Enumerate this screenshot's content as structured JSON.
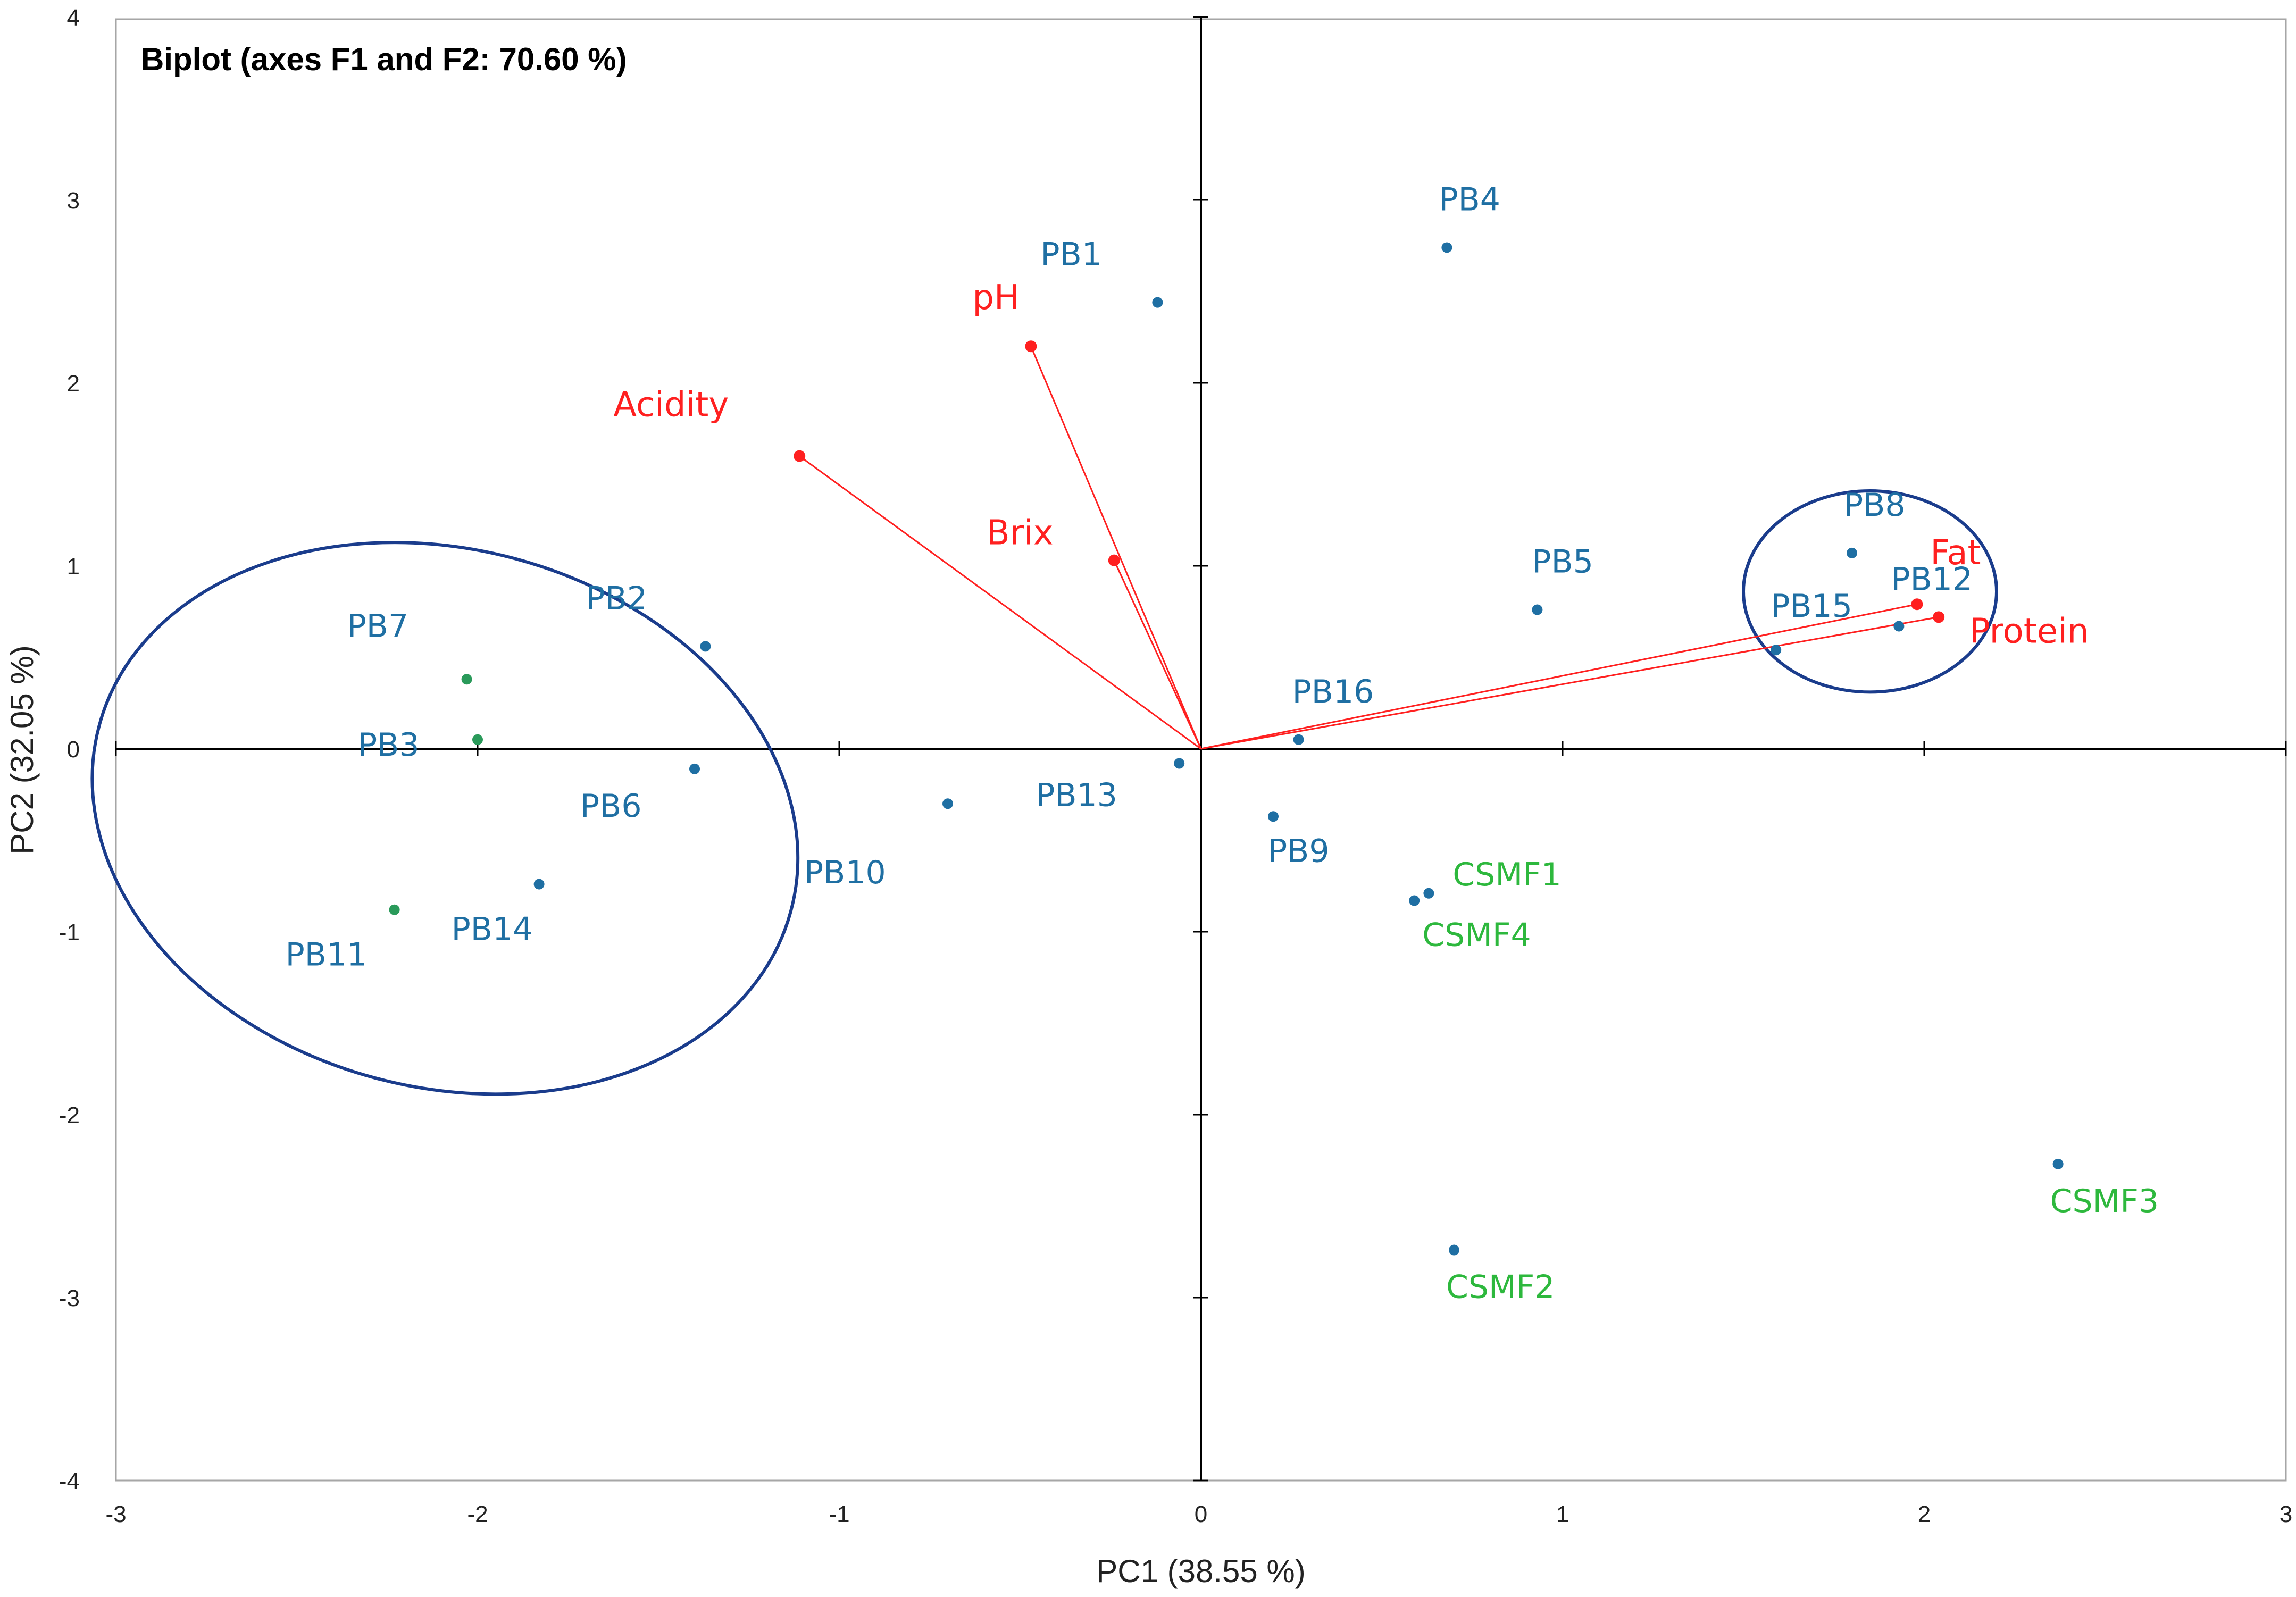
{
  "chart_data": {
    "type": "scatter",
    "title": "Biplot (axes F1 and F2: 70.60 %)",
    "xlabel": "PC1 (38.55 %)",
    "ylabel": "PC2 (32.05 %)",
    "xlim": [
      -3,
      3
    ],
    "ylim": [
      -4,
      4
    ],
    "xticks": [
      "-3",
      "-2",
      "-1",
      "0",
      "1",
      "2",
      "3"
    ],
    "yticks": [
      "4",
      "3",
      "2",
      "1",
      "0",
      "-1",
      "-2",
      "-3",
      "-4"
    ],
    "colors": {
      "sample": "#1f6fa3",
      "cluster_point": "#2a9a5a",
      "commercial": "#2db83d",
      "variable": "#ff2020",
      "ellipse": "#1a3c8c",
      "axis": "#000000"
    },
    "variables": [
      {
        "name": "pH",
        "x": -0.47,
        "y": 2.2
      },
      {
        "name": "Acidity",
        "x": -1.11,
        "y": 1.6
      },
      {
        "name": "Brix",
        "x": -0.24,
        "y": 1.03
      },
      {
        "name": "Fat",
        "x": 1.98,
        "y": 0.79
      },
      {
        "name": "Protein",
        "x": 2.04,
        "y": 0.72
      }
    ],
    "samples": [
      {
        "name": "PB1",
        "x": -0.12,
        "y": 2.44,
        "group": "sample"
      },
      {
        "name": "PB2",
        "x": -1.37,
        "y": 0.56,
        "group": "sample"
      },
      {
        "name": "PB3",
        "x": -2.0,
        "y": 0.05,
        "group": "cluster"
      },
      {
        "name": "PB4",
        "x": 0.68,
        "y": 2.74,
        "group": "sample"
      },
      {
        "name": "PB5",
        "x": 0.93,
        "y": 0.76,
        "group": "sample"
      },
      {
        "name": "PB6",
        "x": -1.4,
        "y": -0.11,
        "group": "sample"
      },
      {
        "name": "PB7",
        "x": -2.03,
        "y": 0.38,
        "group": "cluster"
      },
      {
        "name": "PB8",
        "x": 1.8,
        "y": 1.07,
        "group": "sample"
      },
      {
        "name": "PB9",
        "x": 0.2,
        "y": -0.37,
        "group": "sample"
      },
      {
        "name": "PB10",
        "x": -0.7,
        "y": -0.3,
        "group": "sample"
      },
      {
        "name": "PB11",
        "x": -2.23,
        "y": -0.88,
        "group": "cluster"
      },
      {
        "name": "PB12",
        "x": 1.93,
        "y": 0.67,
        "group": "sample"
      },
      {
        "name": "PB13",
        "x": -0.06,
        "y": -0.08,
        "group": "sample"
      },
      {
        "name": "PB14",
        "x": -1.83,
        "y": -0.74,
        "group": "sample"
      },
      {
        "name": "PB15",
        "x": 1.59,
        "y": 0.54,
        "group": "sample"
      },
      {
        "name": "PB16",
        "x": 0.27,
        "y": 0.05,
        "group": "sample"
      },
      {
        "name": "CSMF1",
        "x": 0.63,
        "y": -0.79,
        "group": "commercial"
      },
      {
        "name": "CSMF2",
        "x": 0.7,
        "y": -2.74,
        "group": "commercial"
      },
      {
        "name": "CSMF3",
        "x": 2.37,
        "y": -2.27,
        "group": "commercial"
      },
      {
        "name": "CSMF4",
        "x": 0.59,
        "y": -0.83,
        "group": "commercial"
      }
    ],
    "ellipses": [
      {
        "name": "left-cluster",
        "cx": -2.09,
        "cy": -0.38,
        "rx": 0.99,
        "ry": 1.47,
        "rotation_deg": 15
      },
      {
        "name": "right-cluster",
        "cx": 1.85,
        "cy": 0.86,
        "rx": 0.35,
        "ry": 0.55,
        "rotation_deg": 0
      }
    ]
  }
}
